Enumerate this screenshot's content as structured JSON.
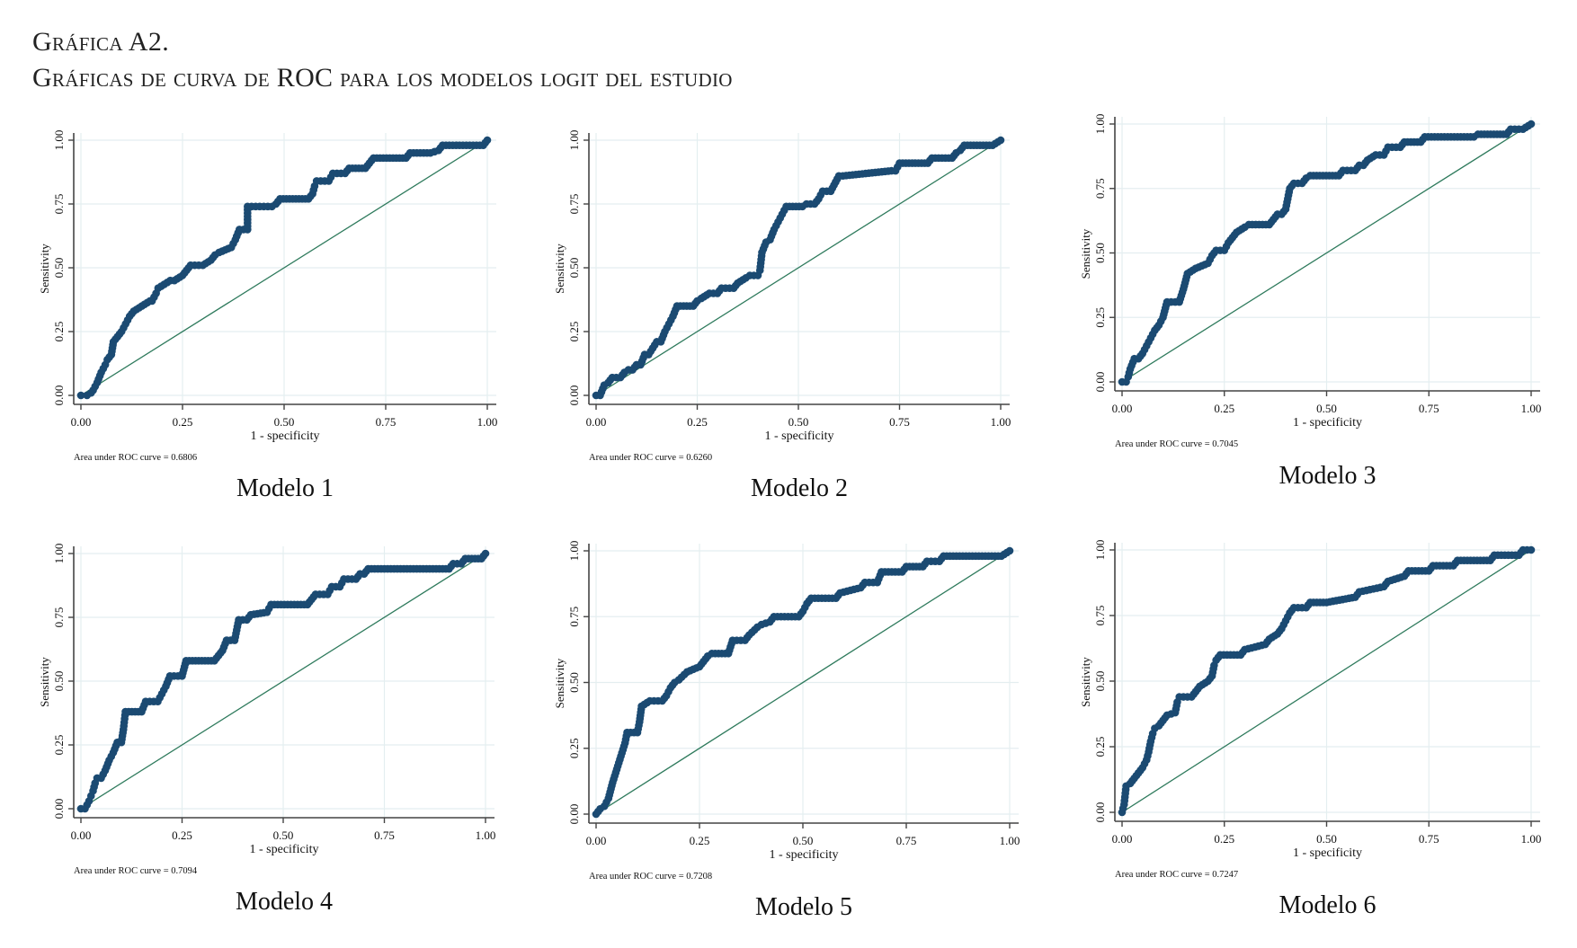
{
  "figure": {
    "title_line1": "Gráfica A2.",
    "title_line2": "Gráficas de curva de ROC para los modelos logit del estudio"
  },
  "chart_data": [
    {
      "type": "line",
      "panel_label": "Modelo 1",
      "xlabel": "1 - specificity",
      "ylabel": "Sensitivity",
      "auc_text": "Area under ROC curve = 0.6806",
      "auc": 0.6806,
      "xlim": [
        0,
        1
      ],
      "ylim": [
        0,
        1
      ],
      "xticks": [
        "0.00",
        "0.25",
        "0.50",
        "0.75",
        "1.00"
      ],
      "yticks": [
        "0.00",
        "0.25",
        "0.50",
        "0.75",
        "1.00"
      ],
      "grid": true,
      "reference_line": [
        [
          0,
          0
        ],
        [
          1,
          1
        ]
      ],
      "x": [
        0,
        0.015,
        0.025,
        0.03,
        0.04,
        0.05,
        0.06,
        0.065,
        0.075,
        0.08,
        0.09,
        0.1,
        0.11,
        0.12,
        0.13,
        0.17,
        0.175,
        0.185,
        0.19,
        0.22,
        0.23,
        0.25,
        0.27,
        0.3,
        0.32,
        0.33,
        0.34,
        0.37,
        0.38,
        0.39,
        0.41,
        0.41,
        0.44,
        0.47,
        0.48,
        0.49,
        0.56,
        0.57,
        0.575,
        0.58,
        0.61,
        0.62,
        0.65,
        0.66,
        0.7,
        0.71,
        0.72,
        0.8,
        0.81,
        0.86,
        0.88,
        0.89,
        0.99,
        1.0
      ],
      "y": [
        0,
        0,
        0.01,
        0.02,
        0.05,
        0.09,
        0.12,
        0.14,
        0.16,
        0.21,
        0.23,
        0.25,
        0.28,
        0.31,
        0.33,
        0.37,
        0.37,
        0.4,
        0.42,
        0.45,
        0.45,
        0.47,
        0.51,
        0.51,
        0.53,
        0.55,
        0.56,
        0.58,
        0.61,
        0.65,
        0.65,
        0.74,
        0.74,
        0.74,
        0.75,
        0.77,
        0.77,
        0.79,
        0.82,
        0.84,
        0.84,
        0.87,
        0.87,
        0.89,
        0.89,
        0.91,
        0.93,
        0.93,
        0.95,
        0.95,
        0.96,
        0.98,
        0.98,
        1.0
      ]
    },
    {
      "type": "line",
      "panel_label": "Modelo 2",
      "xlabel": "1 - specificity",
      "ylabel": "Sensitivity",
      "auc_text": "Area under ROC curve = 0.6260",
      "auc": 0.626,
      "xlim": [
        0,
        1
      ],
      "ylim": [
        0,
        1
      ],
      "xticks": [
        "0.00",
        "0.25",
        "0.50",
        "0.75",
        "1.00"
      ],
      "yticks": [
        "0.00",
        "0.25",
        "0.50",
        "0.75",
        "1.00"
      ],
      "grid": true,
      "reference_line": [
        [
          0,
          0
        ],
        [
          1,
          1
        ]
      ],
      "x": [
        0,
        0.01,
        0.02,
        0.03,
        0.04,
        0.06,
        0.07,
        0.08,
        0.09,
        0.1,
        0.11,
        0.12,
        0.13,
        0.15,
        0.16,
        0.17,
        0.18,
        0.19,
        0.2,
        0.24,
        0.25,
        0.26,
        0.28,
        0.3,
        0.31,
        0.34,
        0.35,
        0.37,
        0.38,
        0.4,
        0.405,
        0.41,
        0.42,
        0.43,
        0.44,
        0.45,
        0.46,
        0.47,
        0.51,
        0.52,
        0.54,
        0.55,
        0.56,
        0.58,
        0.6,
        0.61,
        0.73,
        0.74,
        0.75,
        0.82,
        0.83,
        0.88,
        0.89,
        0.9,
        0.91,
        0.98,
        1.0
      ],
      "y": [
        0,
        0,
        0.04,
        0.05,
        0.07,
        0.07,
        0.09,
        0.1,
        0.1,
        0.12,
        0.12,
        0.16,
        0.16,
        0.21,
        0.21,
        0.25,
        0.28,
        0.31,
        0.35,
        0.35,
        0.37,
        0.38,
        0.4,
        0.4,
        0.42,
        0.42,
        0.44,
        0.46,
        0.47,
        0.47,
        0.49,
        0.56,
        0.6,
        0.61,
        0.65,
        0.68,
        0.71,
        0.74,
        0.74,
        0.75,
        0.75,
        0.77,
        0.8,
        0.8,
        0.86,
        0.86,
        0.88,
        0.88,
        0.91,
        0.91,
        0.93,
        0.93,
        0.95,
        0.96,
        0.98,
        0.98,
        1.0
      ]
    },
    {
      "type": "line",
      "panel_label": "Modelo 3",
      "xlabel": "1 - specificity",
      "ylabel": "Sensitivity",
      "auc_text": "Area under ROC curve = 0.7045",
      "auc": 0.7045,
      "xlim": [
        0,
        1
      ],
      "ylim": [
        0,
        1
      ],
      "xticks": [
        "0.00",
        "0.25",
        "0.50",
        "0.75",
        "1.00"
      ],
      "yticks": [
        "0.00",
        "0.25",
        "0.50",
        "0.75",
        "1.00"
      ],
      "grid": true,
      "reference_line": [
        [
          0,
          0
        ],
        [
          1,
          1
        ]
      ],
      "x": [
        0,
        0.01,
        0.015,
        0.02,
        0.03,
        0.04,
        0.05,
        0.06,
        0.07,
        0.08,
        0.09,
        0.1,
        0.11,
        0.14,
        0.15,
        0.16,
        0.18,
        0.21,
        0.22,
        0.23,
        0.25,
        0.26,
        0.27,
        0.28,
        0.3,
        0.31,
        0.36,
        0.37,
        0.38,
        0.39,
        0.4,
        0.405,
        0.41,
        0.42,
        0.44,
        0.45,
        0.46,
        0.53,
        0.54,
        0.57,
        0.58,
        0.59,
        0.6,
        0.62,
        0.64,
        0.65,
        0.68,
        0.69,
        0.73,
        0.74,
        0.86,
        0.87,
        0.94,
        0.95,
        0.98,
        1.0
      ],
      "y": [
        0,
        0,
        0.02,
        0.05,
        0.09,
        0.09,
        0.11,
        0.14,
        0.17,
        0.2,
        0.22,
        0.25,
        0.31,
        0.31,
        0.36,
        0.42,
        0.44,
        0.46,
        0.49,
        0.51,
        0.51,
        0.54,
        0.56,
        0.58,
        0.6,
        0.61,
        0.61,
        0.63,
        0.65,
        0.65,
        0.67,
        0.71,
        0.75,
        0.77,
        0.77,
        0.79,
        0.8,
        0.8,
        0.82,
        0.82,
        0.84,
        0.84,
        0.86,
        0.88,
        0.88,
        0.91,
        0.91,
        0.93,
        0.93,
        0.95,
        0.95,
        0.96,
        0.96,
        0.98,
        0.98,
        1.0
      ]
    },
    {
      "type": "line",
      "panel_label": "Modelo 4",
      "xlabel": "1 - specificity",
      "ylabel": "Sensitivity",
      "auc_text": "Area under ROC curve = 0.7094",
      "auc": 0.7094,
      "xlim": [
        0,
        1
      ],
      "ylim": [
        0,
        1
      ],
      "xticks": [
        "0.00",
        "0.25",
        "0.50",
        "0.75",
        "1.00"
      ],
      "yticks": [
        "0.00",
        "0.25",
        "0.50",
        "0.75",
        "1.00"
      ],
      "grid": true,
      "reference_line": [
        [
          0,
          0
        ],
        [
          1,
          1
        ]
      ],
      "x": [
        0,
        0.01,
        0.02,
        0.025,
        0.03,
        0.035,
        0.04,
        0.05,
        0.06,
        0.07,
        0.08,
        0.09,
        0.1,
        0.105,
        0.11,
        0.15,
        0.16,
        0.19,
        0.2,
        0.21,
        0.22,
        0.25,
        0.26,
        0.33,
        0.34,
        0.35,
        0.36,
        0.38,
        0.385,
        0.39,
        0.41,
        0.42,
        0.46,
        0.47,
        0.56,
        0.57,
        0.58,
        0.61,
        0.62,
        0.64,
        0.65,
        0.68,
        0.69,
        0.7,
        0.71,
        0.91,
        0.92,
        0.94,
        0.95,
        0.99,
        1.0
      ],
      "y": [
        0,
        0,
        0.03,
        0.05,
        0.07,
        0.1,
        0.12,
        0.12,
        0.15,
        0.19,
        0.22,
        0.26,
        0.26,
        0.31,
        0.38,
        0.38,
        0.42,
        0.42,
        0.45,
        0.48,
        0.52,
        0.52,
        0.58,
        0.58,
        0.6,
        0.62,
        0.66,
        0.66,
        0.7,
        0.74,
        0.74,
        0.76,
        0.77,
        0.8,
        0.8,
        0.82,
        0.84,
        0.84,
        0.87,
        0.87,
        0.9,
        0.9,
        0.92,
        0.92,
        0.94,
        0.94,
        0.96,
        0.96,
        0.98,
        0.98,
        1.0
      ]
    },
    {
      "type": "line",
      "panel_label": "Modelo 5",
      "xlabel": "1 - specificity",
      "ylabel": "Sensitivity",
      "auc_text": "Area under ROC curve = 0.7208",
      "auc": 0.7208,
      "xlim": [
        0,
        1
      ],
      "ylim": [
        0,
        1
      ],
      "xticks": [
        "0.00",
        "0.25",
        "0.50",
        "0.75",
        "1.00"
      ],
      "yticks": [
        "0.00",
        "0.25",
        "0.50",
        "0.75",
        "1.00"
      ],
      "grid": true,
      "reference_line": [
        [
          0,
          0
        ],
        [
          1,
          1
        ]
      ],
      "x": [
        0,
        0.01,
        0.02,
        0.03,
        0.04,
        0.05,
        0.06,
        0.07,
        0.075,
        0.1,
        0.105,
        0.11,
        0.13,
        0.16,
        0.17,
        0.18,
        0.19,
        0.2,
        0.22,
        0.25,
        0.26,
        0.27,
        0.28,
        0.32,
        0.33,
        0.36,
        0.37,
        0.39,
        0.4,
        0.42,
        0.43,
        0.49,
        0.5,
        0.51,
        0.52,
        0.58,
        0.59,
        0.64,
        0.65,
        0.68,
        0.69,
        0.74,
        0.75,
        0.79,
        0.8,
        0.83,
        0.84,
        0.98,
        1.0
      ],
      "y": [
        0,
        0.02,
        0.03,
        0.06,
        0.12,
        0.17,
        0.22,
        0.27,
        0.31,
        0.31,
        0.35,
        0.41,
        0.43,
        0.43,
        0.45,
        0.48,
        0.5,
        0.51,
        0.54,
        0.56,
        0.58,
        0.6,
        0.61,
        0.61,
        0.66,
        0.66,
        0.68,
        0.71,
        0.72,
        0.73,
        0.75,
        0.75,
        0.77,
        0.8,
        0.82,
        0.82,
        0.84,
        0.86,
        0.88,
        0.88,
        0.92,
        0.92,
        0.94,
        0.94,
        0.96,
        0.96,
        0.98,
        0.98,
        1.0
      ]
    },
    {
      "type": "line",
      "panel_label": "Modelo 6",
      "xlabel": "1 - specificity",
      "ylabel": "Sensitivity",
      "auc_text": "Area under ROC curve = 0.7247",
      "auc": 0.7247,
      "xlim": [
        0,
        1
      ],
      "ylim": [
        0,
        1
      ],
      "xticks": [
        "0.00",
        "0.25",
        "0.50",
        "0.75",
        "1.00"
      ],
      "yticks": [
        "0.00",
        "0.25",
        "0.50",
        "0.75",
        "1.00"
      ],
      "grid": true,
      "reference_line": [
        [
          0,
          0
        ],
        [
          1,
          1
        ]
      ],
      "x": [
        0,
        0.005,
        0.01,
        0.02,
        0.03,
        0.04,
        0.05,
        0.06,
        0.065,
        0.07,
        0.075,
        0.08,
        0.09,
        0.1,
        0.11,
        0.13,
        0.135,
        0.14,
        0.17,
        0.18,
        0.19,
        0.21,
        0.22,
        0.225,
        0.23,
        0.24,
        0.29,
        0.3,
        0.35,
        0.36,
        0.38,
        0.39,
        0.4,
        0.41,
        0.42,
        0.45,
        0.46,
        0.5,
        0.57,
        0.58,
        0.64,
        0.65,
        0.69,
        0.7,
        0.75,
        0.76,
        0.81,
        0.82,
        0.9,
        0.91,
        0.97,
        0.98,
        1.0
      ],
      "y": [
        0,
        0.03,
        0.1,
        0.11,
        0.13,
        0.15,
        0.17,
        0.2,
        0.23,
        0.27,
        0.3,
        0.32,
        0.33,
        0.35,
        0.37,
        0.38,
        0.42,
        0.44,
        0.44,
        0.46,
        0.48,
        0.5,
        0.52,
        0.56,
        0.58,
        0.6,
        0.6,
        0.62,
        0.64,
        0.66,
        0.68,
        0.7,
        0.73,
        0.76,
        0.78,
        0.78,
        0.8,
        0.8,
        0.82,
        0.84,
        0.86,
        0.88,
        0.9,
        0.92,
        0.92,
        0.94,
        0.94,
        0.96,
        0.96,
        0.98,
        0.98,
        1.0,
        1.0
      ]
    }
  ]
}
